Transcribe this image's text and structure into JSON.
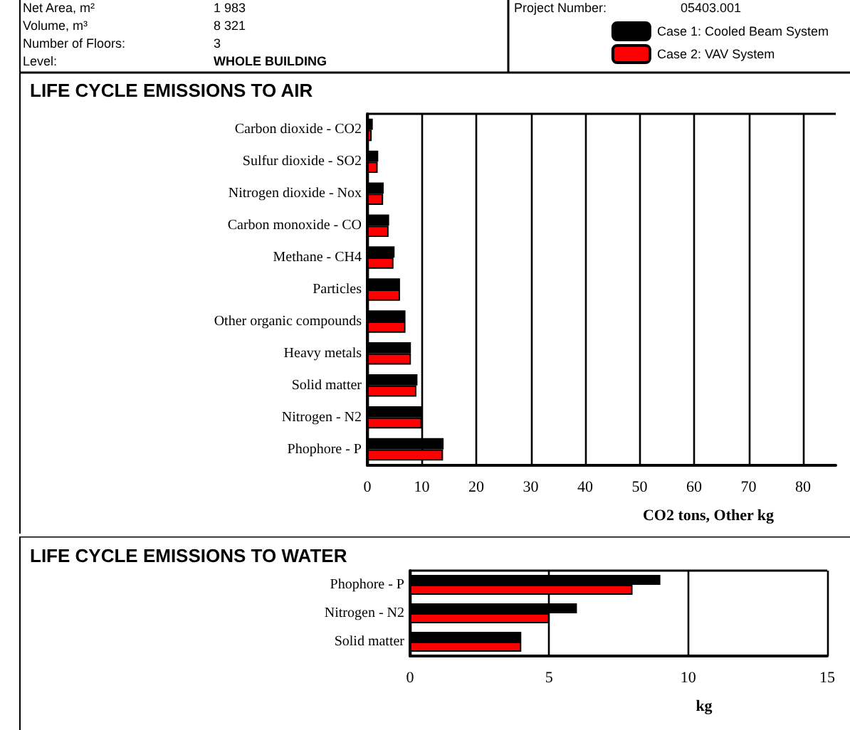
{
  "chart_data": [
    {
      "type": "bar",
      "orientation": "horizontal",
      "title": "LIFE CYCLE EMISSIONS TO AIR",
      "xlabel": "CO2 tons, Other kg",
      "annotations": [
        "Net Area, m²",
        "1 983",
        "Volume, m³",
        "8 321",
        "Number of Floors:",
        "3",
        "Level:",
        "WHOLE BUILDING",
        "Project Number:",
        "05403.001"
      ],
      "categories": [
        "Carbon dioxide - CO2",
        "Sulfur dioxide - SO2",
        "Nitrogen dioxide - Nox",
        "Carbon monoxide - CO",
        "Methane - CH4",
        "Particles",
        "Other organic compounds",
        "Heavy metals",
        "Solid matter",
        "Nitrogen - N2",
        "Phophore - P"
      ],
      "series": [
        {
          "name": "Case 1: Cooled Beam System",
          "color": "#000000",
          "values": [
            1,
            2,
            3,
            4,
            5,
            6,
            7,
            8,
            9.2,
            10,
            14
          ]
        },
        {
          "name": "Case 2: VAV System",
          "color": "#ff0000",
          "values": [
            0.8,
            1.9,
            2.9,
            3.9,
            4.8,
            6,
            7,
            8,
            9,
            10,
            13.9
          ]
        }
      ],
      "xlim": [
        0,
        86
      ],
      "xticks": [
        0,
        10,
        20,
        30,
        40,
        50,
        60,
        70,
        80
      ],
      "grid": "x",
      "legend": "top right"
    },
    {
      "type": "bar",
      "orientation": "horizontal",
      "title": "LIFE CYCLE EMISSIONS TO WATER",
      "xlabel": "kg",
      "categories": [
        "Phophore - P",
        "Nitrogen - N2",
        "Solid matter"
      ],
      "series": [
        {
          "color": "#000000",
          "values": [
            9,
            6,
            4
          ]
        },
        {
          "color": "#ff0000",
          "values": [
            8,
            5,
            4
          ]
        }
      ],
      "xlim": [
        0,
        15
      ],
      "xticks": [
        0,
        5,
        10,
        15
      ],
      "grid": "x"
    }
  ]
}
